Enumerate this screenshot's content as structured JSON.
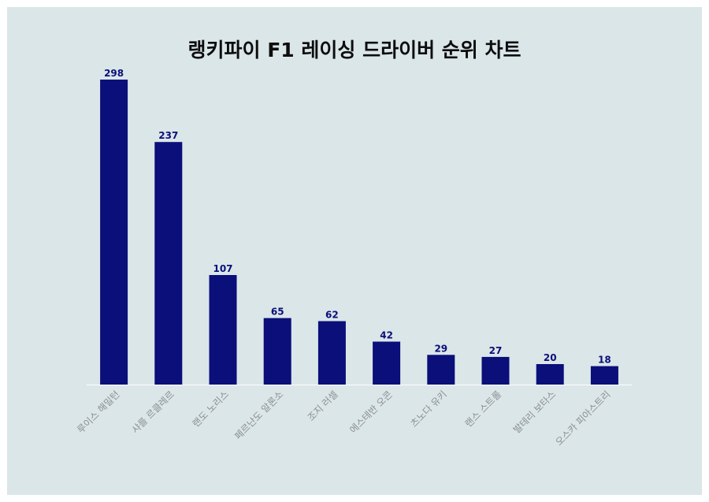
{
  "chart_data": {
    "type": "bar",
    "title": "랭키파이 F1 레이싱 드라이버 순위 차트",
    "categories": [
      "루이스 해밀턴",
      "샤를 르클레르",
      "랜도 노리스",
      "페르난도 알론소",
      "조지 러셀",
      "에스테반 오콘",
      "츠노다 유키",
      "랜스 스트롤",
      "발테리 보타스",
      "오스카 피아스트리"
    ],
    "values": [
      298,
      237,
      107,
      65,
      62,
      42,
      29,
      27,
      20,
      18
    ],
    "xlabel": "",
    "ylabel": "",
    "ylim": [
      0,
      298
    ],
    "grid": false,
    "legend": "none",
    "colors": {
      "bar": "#0a0f7a",
      "value_label": "#0a0f7a",
      "tick_label": "#8a8f94",
      "axis": "#ffffff",
      "background": "#dbe6e8"
    }
  }
}
